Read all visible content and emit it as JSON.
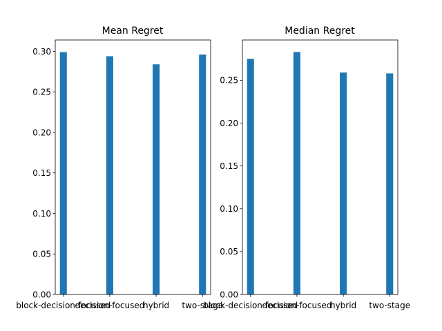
{
  "chart_data": [
    {
      "type": "bar",
      "title": "Mean Regret",
      "xlabel": "",
      "ylabel": "",
      "categories": [
        "block-decision-focused",
        "decision-focused",
        "hybrid",
        "two-stage"
      ],
      "values": [
        0.299,
        0.294,
        0.284,
        0.296
      ],
      "ylim": [
        0,
        0.314
      ],
      "yticks": [
        0.0,
        0.05,
        0.1,
        0.15,
        0.2,
        0.25,
        0.3
      ],
      "ytick_labels": [
        "0.00",
        "0.05",
        "0.10",
        "0.15",
        "0.20",
        "0.25",
        "0.30"
      ],
      "bar_color": "#1f77b4",
      "grid": false,
      "legend": "none"
    },
    {
      "type": "bar",
      "title": "Median Regret",
      "xlabel": "",
      "ylabel": "",
      "categories": [
        "block-decision-focused",
        "decision-focused",
        "hybrid",
        "two-stage"
      ],
      "values": [
        0.275,
        0.283,
        0.259,
        0.258
      ],
      "ylim": [
        0,
        0.297
      ],
      "yticks": [
        0.0,
        0.05,
        0.1,
        0.15,
        0.2,
        0.25
      ],
      "ytick_labels": [
        "0.00",
        "0.05",
        "0.10",
        "0.15",
        "0.20",
        "0.25"
      ],
      "bar_color": "#1f77b4",
      "grid": false,
      "legend": "none"
    }
  ]
}
